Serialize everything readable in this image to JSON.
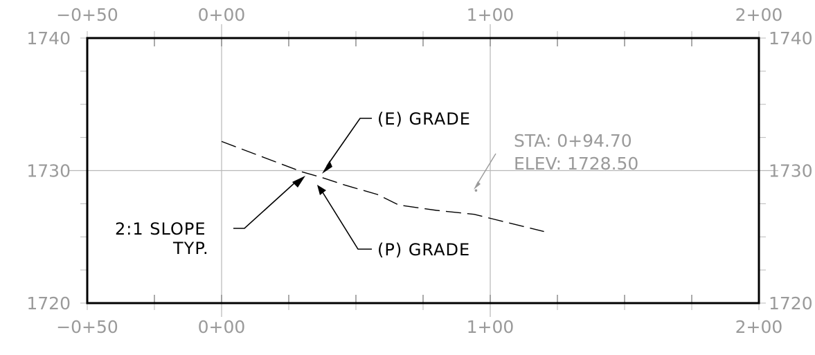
{
  "chart_data": {
    "type": "profile",
    "x_unit": "station (ft)",
    "y_unit": "elevation (ft)",
    "xlim": [
      -50,
      200
    ],
    "ylim": [
      1720,
      1740
    ],
    "x_ticks": [
      {
        "value": -50,
        "label": "−0+50"
      },
      {
        "value": 0,
        "label": "0+00"
      },
      {
        "value": 100,
        "label": "1+00"
      },
      {
        "value": 200,
        "label": "2+00"
      }
    ],
    "y_ticks": [
      {
        "value": 1720,
        "label": "1720"
      },
      {
        "value": 1730,
        "label": "1730"
      },
      {
        "value": 1740,
        "label": "1740"
      }
    ],
    "grid_x": [
      0,
      100
    ],
    "grid_y": [
      1730
    ],
    "minor_tick_spacing_x": 25,
    "minor_tick_spacing_y": 2.5,
    "series": [
      {
        "style": "dashed",
        "points": [
          [
            0,
            1732.2
          ],
          [
            30,
            1729.9
          ],
          [
            37,
            1729.5
          ],
          [
            46,
            1728.9
          ],
          [
            58,
            1728.2
          ],
          [
            66,
            1727.4
          ],
          [
            80,
            1727.0
          ],
          [
            94,
            1726.7
          ],
          [
            120,
            1725.4
          ]
        ]
      }
    ],
    "point_marker": {
      "x": 94.7,
      "y": 1728.5
    }
  },
  "annotations": {
    "existing_grade": "(E) GRADE",
    "proposed_grade": "(P) GRADE",
    "slope_line1": "2:1 SLOPE",
    "slope_line2": "TYP.",
    "sta_label": "STA: 0+94.70",
    "elev_label": "ELEV: 1728.50"
  },
  "colors": {
    "frame": "#000000",
    "grid": "#b8b8b8",
    "tick_labels": "#9a9a9a",
    "annotation_text": "#000000",
    "station_callout": "#9a9a9a"
  }
}
